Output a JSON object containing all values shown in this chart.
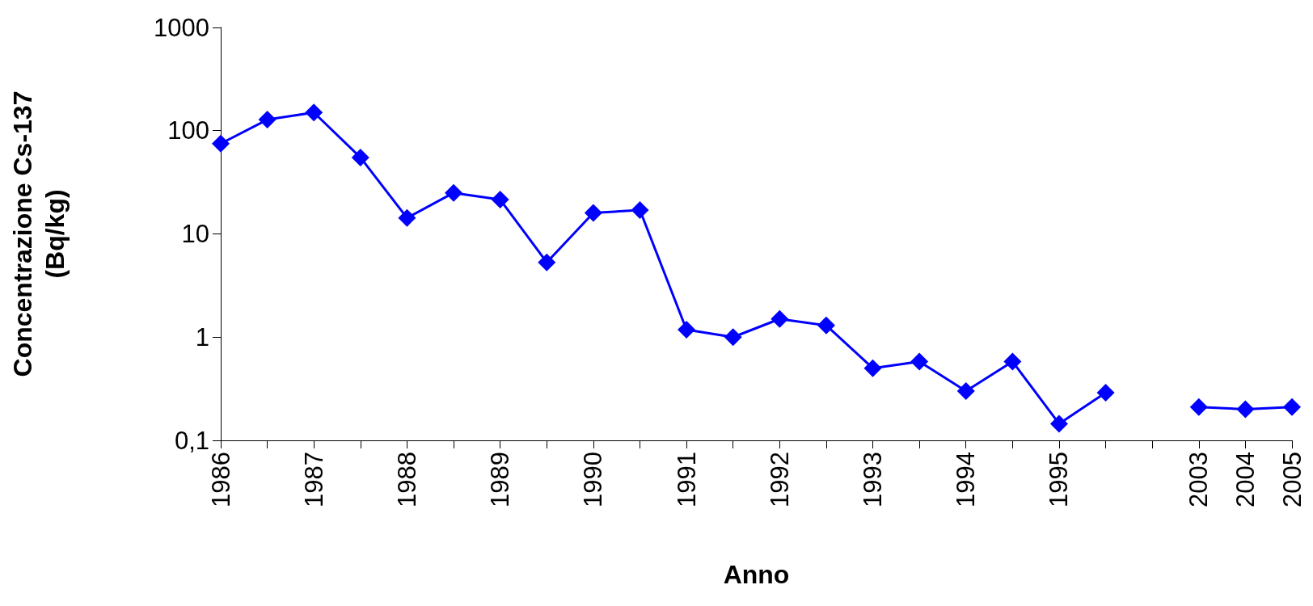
{
  "chart_data": {
    "type": "line",
    "xlabel": "Anno",
    "ylabel": "Concentrazione Cs-137\n(Bq/kg)",
    "categories": [
      "1986",
      null,
      "1987",
      null,
      "1988",
      null,
      "1989",
      null,
      "1990",
      null,
      "1991",
      null,
      "1992",
      null,
      "1993",
      null,
      "1994",
      null,
      "1995",
      null,
      null,
      "2003",
      "2004",
      "2005"
    ],
    "series": [
      {
        "color": "#0000ff",
        "values": [
          75,
          128,
          150,
          55,
          14.3,
          25,
          21.5,
          5.3,
          16,
          17,
          1.18,
          1.0,
          1.5,
          1.3,
          0.5,
          0.58,
          0.3,
          0.58,
          0.145,
          0.29,
          null,
          0.21,
          0.2,
          0.21
        ]
      }
    ],
    "log": "y",
    "ylim": [
      0.1,
      1000
    ],
    "yticks": [
      {
        "value": 0.1,
        "label": "0,1"
      },
      1,
      10,
      100,
      1000
    ],
    "grid": false,
    "marker": "diamond",
    "line_style": "solid"
  }
}
